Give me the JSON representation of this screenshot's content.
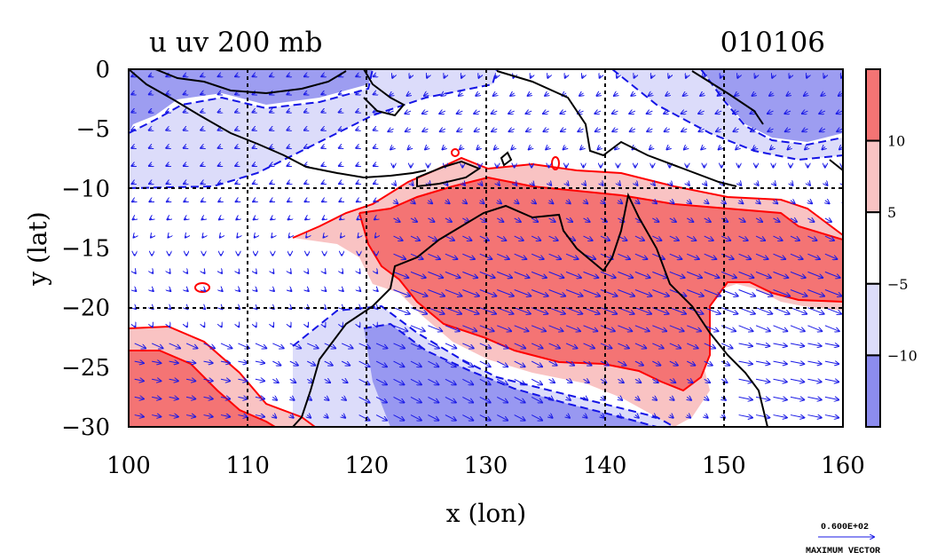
{
  "chart_data": {
    "type": "heatmap",
    "title": "u uv 200 mb",
    "subtitle": "010106",
    "xlabel": "x (lon)",
    "ylabel": "y (lat)",
    "xlim": [
      100,
      160
    ],
    "ylim": [
      -30,
      0
    ],
    "x_ticks": [
      "100",
      "110",
      "120",
      "130",
      "140",
      "150",
      "160"
    ],
    "y_ticks": [
      "0",
      "−5",
      "−10",
      "−15",
      "−20",
      "−25",
      "−30"
    ],
    "x_tick_values": [
      100,
      110,
      120,
      130,
      140,
      150,
      160
    ],
    "y_tick_values": [
      0,
      -5,
      -10,
      -15,
      -20,
      -25,
      -30
    ],
    "grid": true,
    "colorbar": {
      "labels": [
        "10",
        "5",
        "−5",
        "−10"
      ],
      "label_values": [
        10,
        5,
        -5,
        -10
      ],
      "colors": [
        "#f47474",
        "#f9c3c3",
        "#ffffff",
        "#dcdcfa",
        "#8c8cee"
      ]
    },
    "colors": {
      "positive_strong": "#f47474",
      "positive_weak": "#f9c3c3",
      "negative_weak": "#dcdcfa",
      "negative_strong": "#8c8cee",
      "positive_contour": "#ff0000",
      "negative_contour": "#1414e6",
      "vectors": "#1a1ae6",
      "coastline": "#000000"
    },
    "vector_legend": {
      "value": "0.600E+02",
      "label": "MAXIMUM VECTOR"
    }
  }
}
